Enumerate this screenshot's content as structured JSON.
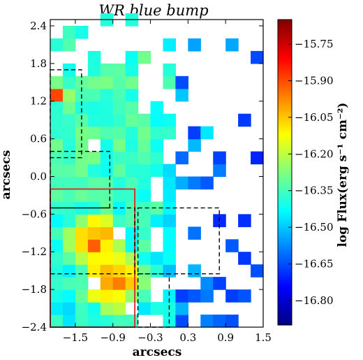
{
  "chart_data": {
    "type": "heatmap",
    "title": "WR blue bump",
    "xlabel": "arcsecs",
    "ylabel": "arcsecs",
    "xlim": [
      -1.9,
      1.5
    ],
    "ylim": [
      -2.4,
      2.5
    ],
    "xticks": [
      -1.5,
      -0.9,
      -0.3,
      0.3,
      0.9,
      1.5
    ],
    "xtick_labels": [
      "−1.5",
      "−0.9",
      "−0.3",
      "0.3",
      "0.9",
      "1.5"
    ],
    "yticks": [
      2.4,
      1.8,
      1.2,
      0.6,
      0.0,
      -0.6,
      -1.2,
      -1.8,
      -2.4
    ],
    "ytick_labels": [
      "2.4",
      "1.8",
      "1.2",
      "0.6",
      "0.0",
      "−0.6",
      "−1.2",
      "−1.8",
      "−2.4"
    ],
    "pixel_size": 0.2,
    "colormap": "jet",
    "colorbar": {
      "label": "log Flux(erg s⁻¹ cm⁻²)",
      "min": -16.9,
      "max": -15.65,
      "ticks": [
        -15.75,
        -15.9,
        -16.05,
        -16.2,
        -16.35,
        -16.5,
        -16.65,
        -16.8
      ],
      "tick_labels": [
        "−15.75",
        "−15.90",
        "−16.05",
        "−16.20",
        "−16.35",
        "−16.50",
        "−16.65",
        "−16.80"
      ]
    },
    "flux_structure": {
      "peaks": [
        {
          "x": -1.2,
          "y": -1.05,
          "value": -15.97
        },
        {
          "x": -0.9,
          "y": -1.65,
          "value": -15.95
        },
        {
          "x": -1.75,
          "y": 1.35,
          "value": -15.7
        }
      ],
      "notes": "Bright knot in lower left; emission falls off toward the right and top; sparse low flux pixels scattered to the right."
    },
    "apertures": [
      {
        "style": "solid",
        "color": "#d62728",
        "x": [
          -1.9,
          -0.55
        ],
        "y": [
          -2.4,
          -0.2
        ]
      },
      {
        "style": "dashed",
        "color": "#000000",
        "x": [
          -1.9,
          -1.4
        ],
        "y": [
          0.3,
          1.7
        ]
      },
      {
        "style": "dashed",
        "color": "#000000",
        "x": [
          -1.9,
          -0.95
        ],
        "y": [
          -0.5,
          0.4
        ]
      },
      {
        "style": "dashed",
        "color": "#000000",
        "x": [
          -1.9,
          -0.55
        ],
        "y": [
          -1.55,
          -0.5
        ]
      },
      {
        "style": "dashed",
        "color": "#000000",
        "x": [
          -0.5,
          0.8
        ],
        "y": [
          -1.55,
          -0.5
        ]
      },
      {
        "style": "dashed",
        "color": "#000000",
        "x": [
          -0.5,
          0.0
        ],
        "y": [
          -2.4,
          -1.55
        ]
      }
    ]
  }
}
